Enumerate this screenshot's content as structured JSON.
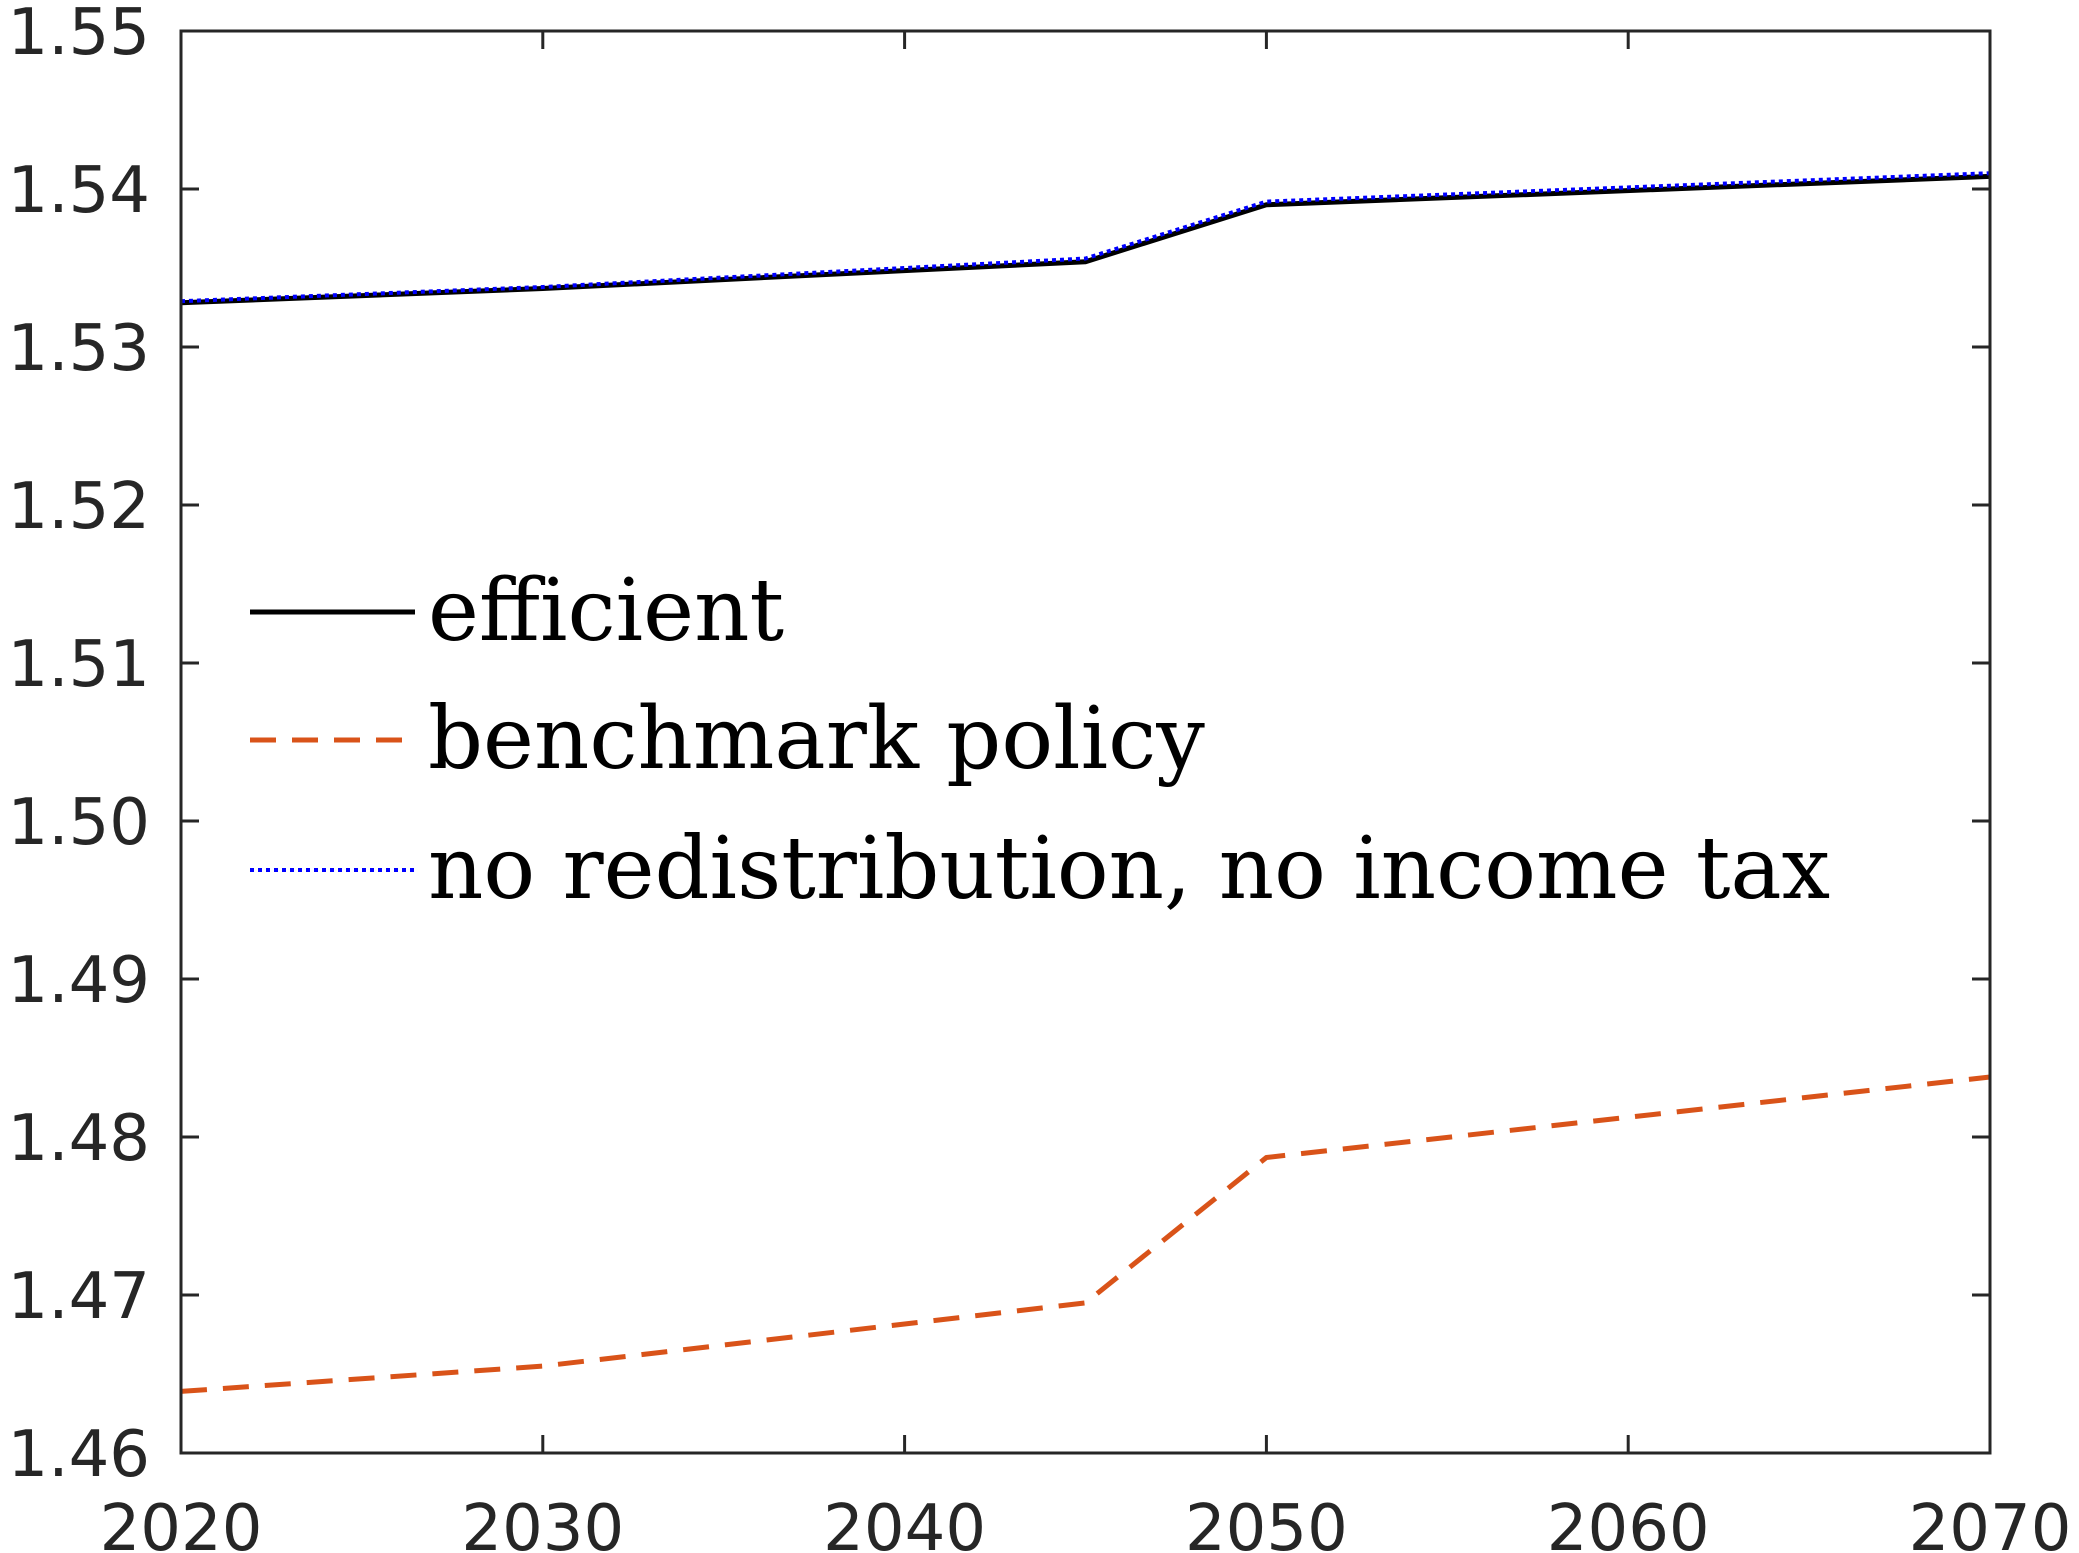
{
  "chart_data": {
    "type": "line",
    "title": "",
    "xlabel": "",
    "ylabel": "",
    "xlim": [
      2020,
      2070
    ],
    "ylim": [
      1.46,
      1.55
    ],
    "xticks": [
      2020,
      2030,
      2040,
      2050,
      2060,
      2070
    ],
    "xtick_labels": [
      "2020",
      "2030",
      "2040",
      "2050",
      "2060",
      "2070"
    ],
    "yticks": [
      1.46,
      1.47,
      1.48,
      1.49,
      1.5,
      1.51,
      1.52,
      1.53,
      1.54,
      1.55
    ],
    "ytick_labels": [
      "1.46",
      "1.47",
      "1.48",
      "1.49",
      "1.50",
      "1.51",
      "1.52",
      "1.53",
      "1.54",
      "1.55"
    ],
    "grid": false,
    "legend_position": "middle-left",
    "x": [
      2020,
      2030,
      2045,
      2050,
      2070
    ],
    "series": [
      {
        "name": "efficient",
        "values": [
          1.5328,
          1.5337,
          1.5354,
          1.539,
          1.5408
        ],
        "color": "#000000",
        "style": "solid"
      },
      {
        "name": "benchmark policy",
        "values": [
          1.4639,
          1.4655,
          1.4695,
          1.4787,
          1.4838
        ],
        "color": "#D95319",
        "style": "dashed"
      },
      {
        "name": "no redistribution, no income tax",
        "values": [
          1.5329,
          1.5338,
          1.5356,
          1.5392,
          1.541
        ],
        "color": "#0000FF",
        "style": "dotted"
      }
    ]
  }
}
